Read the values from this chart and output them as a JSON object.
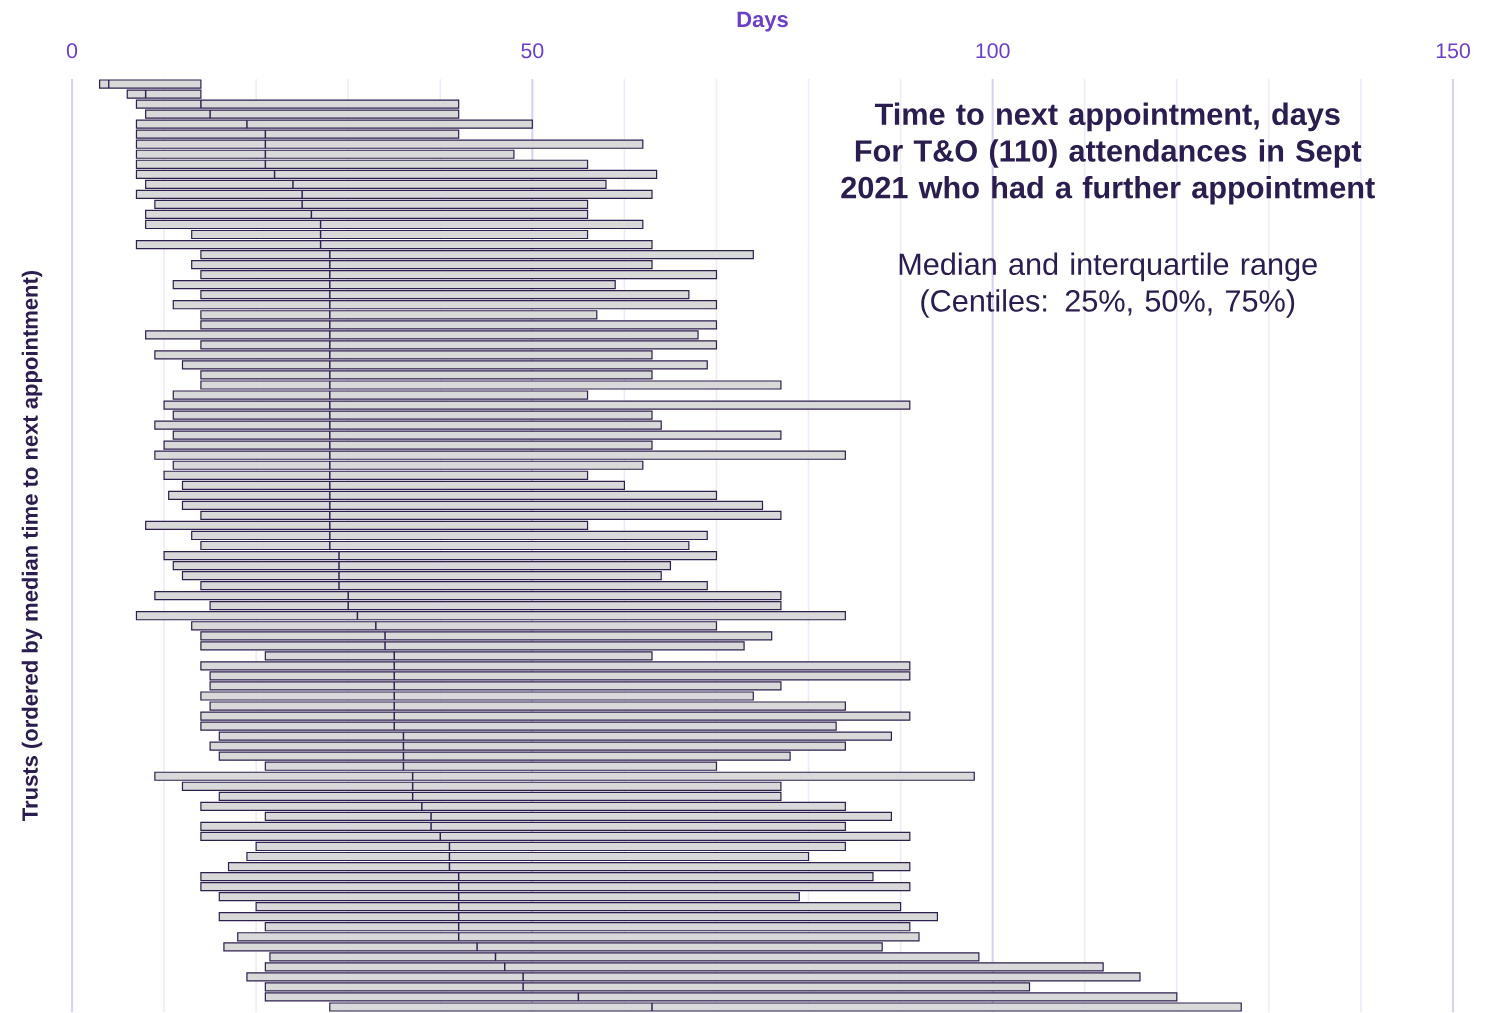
{
  "chart_data": {
    "type": "box",
    "orientation": "horizontal",
    "title": "Time to next appointment, days",
    "subtitle": "For T&O (110) attendances in Sept 2021 who had a further appointment",
    "annotations": [
      "Median and interquartile range",
      "(Centiles: 25%, 50%, 75%)"
    ],
    "xlabel": "Days",
    "ylabel": "Trusts (ordered by median time to next appointment)",
    "xlim": [
      0,
      150
    ],
    "xticks": [
      0,
      {
        "value": 10,
        "label": null
      },
      {
        "value": 20,
        "label": null
      },
      {
        "value": 30,
        "label": null
      },
      {
        "value": 40,
        "label": null
      },
      50,
      {
        "value": 60,
        "label": null
      },
      {
        "value": 70,
        "label": null
      },
      {
        "value": 80,
        "label": null
      },
      {
        "value": 90,
        "label": null
      },
      100,
      {
        "value": 110,
        "label": null
      },
      {
        "value": 120,
        "label": null
      },
      {
        "value": 130,
        "label": null
      },
      {
        "value": 140,
        "label": null
      },
      150
    ],
    "grid": "x",
    "color": "#d9d9d9",
    "categories": [
      null,
      null,
      null,
      null,
      null,
      null,
      null,
      null,
      null,
      null,
      null,
      null,
      null,
      null,
      null,
      null,
      null,
      null,
      null,
      null,
      null,
      null,
      null,
      null,
      null,
      null,
      null,
      null,
      null,
      null,
      null,
      null,
      null,
      null,
      null,
      null,
      null,
      null,
      null,
      null,
      null,
      null,
      null,
      null,
      null,
      null,
      null,
      null,
      null,
      null,
      null,
      null,
      null,
      null,
      null,
      null,
      null,
      null,
      null,
      null,
      null,
      null,
      null,
      null,
      null,
      null,
      null,
      null,
      null,
      null,
      null,
      null,
      null,
      null,
      null,
      null,
      null,
      null,
      null,
      null,
      null,
      null,
      null,
      null,
      null,
      null,
      null,
      null,
      null,
      null,
      null,
      null,
      null
    ],
    "boxes": [
      {
        "low": 3,
        "q1": 3,
        "median": 4,
        "q3": 14,
        "high": 14
      },
      {
        "low": 6,
        "q1": 6,
        "median": 8,
        "q3": 14,
        "high": 14
      },
      {
        "low": 7,
        "q1": 7,
        "median": 14,
        "q3": 42,
        "high": 42
      },
      {
        "low": 8,
        "q1": 8,
        "median": 15,
        "q3": 42,
        "high": 42
      },
      {
        "low": 7,
        "q1": 7,
        "median": 19,
        "q3": 50,
        "high": 50
      },
      {
        "low": 7,
        "q1": 7,
        "median": 21,
        "q3": 42,
        "high": 42
      },
      {
        "low": 7,
        "q1": 7,
        "median": 21,
        "q3": 62,
        "high": 62
      },
      {
        "low": 7,
        "q1": 7,
        "median": 21,
        "q3": 48,
        "high": 48
      },
      {
        "low": 7,
        "q1": 7,
        "median": 21,
        "q3": 56,
        "high": 56
      },
      {
        "low": 7,
        "q1": 7,
        "median": 22,
        "q3": 63.5,
        "high": 63.5
      },
      {
        "low": 8,
        "q1": 8,
        "median": 24,
        "q3": 58,
        "high": 58
      },
      {
        "low": 7,
        "q1": 7,
        "median": 25,
        "q3": 63,
        "high": 63
      },
      {
        "low": 9,
        "q1": 9,
        "median": 25,
        "q3": 56,
        "high": 56
      },
      {
        "low": 8,
        "q1": 8,
        "median": 26,
        "q3": 56,
        "high": 56
      },
      {
        "low": 8,
        "q1": 8,
        "median": 27,
        "q3": 62,
        "high": 62
      },
      {
        "low": 13,
        "q1": 13,
        "median": 27,
        "q3": 56,
        "high": 56
      },
      {
        "low": 7,
        "q1": 7,
        "median": 27,
        "q3": 63,
        "high": 63
      },
      {
        "low": 14,
        "q1": 14,
        "median": 28,
        "q3": 74,
        "high": 74
      },
      {
        "low": 13,
        "q1": 13,
        "median": 28,
        "q3": 63,
        "high": 63
      },
      {
        "low": 14,
        "q1": 14,
        "median": 28,
        "q3": 70,
        "high": 70
      },
      {
        "low": 11,
        "q1": 11,
        "median": 28,
        "q3": 59,
        "high": 59
      },
      {
        "low": 14,
        "q1": 14,
        "median": 28,
        "q3": 67,
        "high": 67
      },
      {
        "low": 11,
        "q1": 11,
        "median": 28,
        "q3": 70,
        "high": 70
      },
      {
        "low": 14,
        "q1": 14,
        "median": 28,
        "q3": 57,
        "high": 57
      },
      {
        "low": 14,
        "q1": 14,
        "median": 28,
        "q3": 70,
        "high": 70
      },
      {
        "low": 8,
        "q1": 8,
        "median": 28,
        "q3": 68,
        "high": 68
      },
      {
        "low": 14,
        "q1": 14,
        "median": 28,
        "q3": 70,
        "high": 70
      },
      {
        "low": 9,
        "q1": 9,
        "median": 28,
        "q3": 63,
        "high": 63
      },
      {
        "low": 12,
        "q1": 12,
        "median": 28,
        "q3": 69,
        "high": 69
      },
      {
        "low": 14,
        "q1": 14,
        "median": 28,
        "q3": 63,
        "high": 63
      },
      {
        "low": 14,
        "q1": 14,
        "median": 28,
        "q3": 77,
        "high": 77
      },
      {
        "low": 11,
        "q1": 11,
        "median": 28,
        "q3": 56,
        "high": 56
      },
      {
        "low": 10,
        "q1": 10,
        "median": 28,
        "q3": 91,
        "high": 91
      },
      {
        "low": 11,
        "q1": 11,
        "median": 28,
        "q3": 63,
        "high": 63
      },
      {
        "low": 9,
        "q1": 9,
        "median": 28,
        "q3": 64,
        "high": 64
      },
      {
        "low": 11,
        "q1": 11,
        "median": 28,
        "q3": 77,
        "high": 77
      },
      {
        "low": 10,
        "q1": 10,
        "median": 28,
        "q3": 63,
        "high": 63
      },
      {
        "low": 9,
        "q1": 9,
        "median": 28,
        "q3": 84,
        "high": 84
      },
      {
        "low": 11,
        "q1": 11,
        "median": 28,
        "q3": 62,
        "high": 62
      },
      {
        "low": 10,
        "q1": 10,
        "median": 28,
        "q3": 56,
        "high": 56
      },
      {
        "low": 12,
        "q1": 12,
        "median": 28,
        "q3": 60,
        "high": 60
      },
      {
        "low": 10.5,
        "q1": 10.5,
        "median": 28,
        "q3": 70,
        "high": 70
      },
      {
        "low": 12,
        "q1": 12,
        "median": 28,
        "q3": 75,
        "high": 75
      },
      {
        "low": 14,
        "q1": 14,
        "median": 28,
        "q3": 77,
        "high": 77
      },
      {
        "low": 8,
        "q1": 8,
        "median": 28,
        "q3": 56,
        "high": 56
      },
      {
        "low": 13,
        "q1": 13,
        "median": 28,
        "q3": 69,
        "high": 69
      },
      {
        "low": 14,
        "q1": 14,
        "median": 28,
        "q3": 67,
        "high": 67
      },
      {
        "low": 10,
        "q1": 10,
        "median": 29,
        "q3": 70,
        "high": 70
      },
      {
        "low": 11,
        "q1": 11,
        "median": 29,
        "q3": 65,
        "high": 65
      },
      {
        "low": 12,
        "q1": 12,
        "median": 29,
        "q3": 64,
        "high": 64
      },
      {
        "low": 14,
        "q1": 14,
        "median": 29,
        "q3": 69,
        "high": 69
      },
      {
        "low": 9,
        "q1": 9,
        "median": 30,
        "q3": 77,
        "high": 77
      },
      {
        "low": 15,
        "q1": 15,
        "median": 30,
        "q3": 77,
        "high": 77
      },
      {
        "low": 7,
        "q1": 7,
        "median": 31,
        "q3": 84,
        "high": 84
      },
      {
        "low": 13,
        "q1": 13,
        "median": 33,
        "q3": 70,
        "high": 70
      },
      {
        "low": 14,
        "q1": 14,
        "median": 34,
        "q3": 76,
        "high": 76
      },
      {
        "low": 14,
        "q1": 14,
        "median": 34,
        "q3": 73,
        "high": 73
      },
      {
        "low": 21,
        "q1": 21,
        "median": 35,
        "q3": 63,
        "high": 63
      },
      {
        "low": 14,
        "q1": 14,
        "median": 35,
        "q3": 91,
        "high": 91
      },
      {
        "low": 15,
        "q1": 15,
        "median": 35,
        "q3": 91,
        "high": 91
      },
      {
        "low": 15,
        "q1": 15,
        "median": 35,
        "q3": 77,
        "high": 77
      },
      {
        "low": 14,
        "q1": 14,
        "median": 35,
        "q3": 74,
        "high": 74
      },
      {
        "low": 15,
        "q1": 15,
        "median": 35,
        "q3": 84,
        "high": 84
      },
      {
        "low": 14,
        "q1": 14,
        "median": 35,
        "q3": 91,
        "high": 91
      },
      {
        "low": 14,
        "q1": 14,
        "median": 35,
        "q3": 83,
        "high": 83
      },
      {
        "low": 16,
        "q1": 16,
        "median": 36,
        "q3": 89,
        "high": 89
      },
      {
        "low": 15,
        "q1": 15,
        "median": 36,
        "q3": 84,
        "high": 84
      },
      {
        "low": 16,
        "q1": 16,
        "median": 36,
        "q3": 78,
        "high": 78
      },
      {
        "low": 21,
        "q1": 21,
        "median": 36,
        "q3": 70,
        "high": 70
      },
      {
        "low": 9,
        "q1": 9,
        "median": 37,
        "q3": 98,
        "high": 98
      },
      {
        "low": 12,
        "q1": 12,
        "median": 37,
        "q3": 77,
        "high": 77
      },
      {
        "low": 16,
        "q1": 16,
        "median": 37,
        "q3": 77,
        "high": 77
      },
      {
        "low": 14,
        "q1": 14,
        "median": 38,
        "q3": 84,
        "high": 84
      },
      {
        "low": 21,
        "q1": 21,
        "median": 39,
        "q3": 89,
        "high": 89
      },
      {
        "low": 14,
        "q1": 14,
        "median": 39,
        "q3": 84,
        "high": 84
      },
      {
        "low": 14,
        "q1": 14,
        "median": 40,
        "q3": 91,
        "high": 91
      },
      {
        "low": 20,
        "q1": 20,
        "median": 41,
        "q3": 84,
        "high": 84
      },
      {
        "low": 19,
        "q1": 19,
        "median": 41,
        "q3": 80,
        "high": 80
      },
      {
        "low": 17,
        "q1": 17,
        "median": 41,
        "q3": 91,
        "high": 91
      },
      {
        "low": 14,
        "q1": 14,
        "median": 42,
        "q3": 87,
        "high": 87
      },
      {
        "low": 14,
        "q1": 14,
        "median": 42,
        "q3": 91,
        "high": 91
      },
      {
        "low": 16,
        "q1": 16,
        "median": 42,
        "q3": 79,
        "high": 79
      },
      {
        "low": 20,
        "q1": 20,
        "median": 42,
        "q3": 90,
        "high": 90
      },
      {
        "low": 16,
        "q1": 16,
        "median": 42,
        "q3": 94,
        "high": 94
      },
      {
        "low": 21,
        "q1": 21,
        "median": 42,
        "q3": 91,
        "high": 91
      },
      {
        "low": 18,
        "q1": 18,
        "median": 42,
        "q3": 92,
        "high": 92
      },
      {
        "low": 16.5,
        "q1": 16.5,
        "median": 44,
        "q3": 88,
        "high": 88
      },
      {
        "low": 21.5,
        "q1": 21.5,
        "median": 46,
        "q3": 98.5,
        "high": 98.5
      },
      {
        "low": 21,
        "q1": 21,
        "median": 47,
        "q3": 112,
        "high": 112
      },
      {
        "low": 19,
        "q1": 19,
        "median": 49,
        "q3": 116,
        "high": 116
      },
      {
        "low": 21,
        "q1": 21,
        "median": 49,
        "q3": 104,
        "high": 104
      },
      {
        "low": 21,
        "q1": 21,
        "median": 55,
        "q3": 120,
        "high": 120
      },
      {
        "low": 28,
        "q1": 28,
        "median": 63,
        "q3": 127,
        "high": 127
      }
    ]
  }
}
